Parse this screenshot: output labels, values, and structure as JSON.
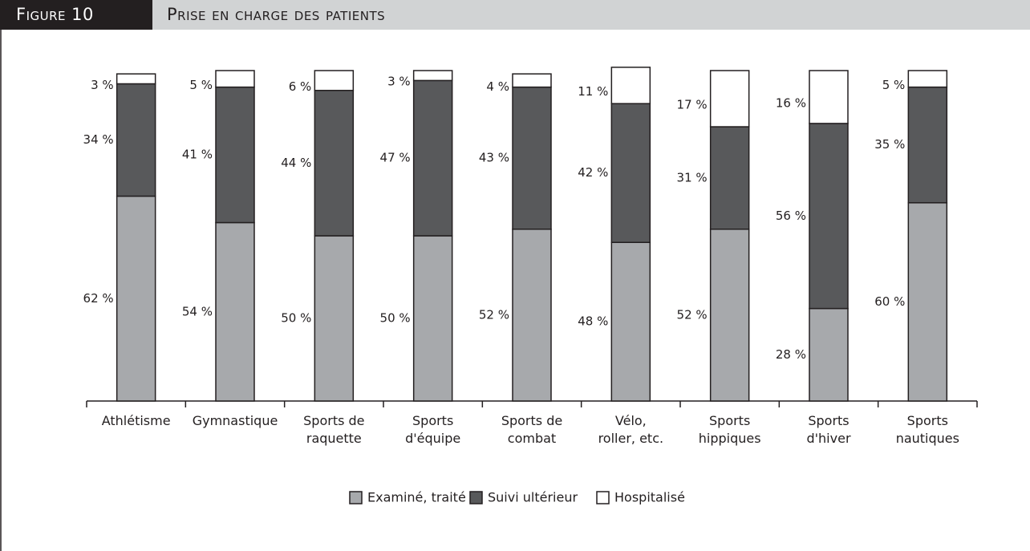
{
  "header": {
    "figure": "Figure 10",
    "title": "Prise en charge des patients"
  },
  "chart_data": {
    "type": "stacked_bar",
    "categories": [
      "Athlétisme",
      "Gymnastique",
      "Sports de\nraquette",
      "Sports\nd'équipe",
      "Sports de\ncombat",
      "Vélo,\nroller, etc.",
      "Sports\nhippiques",
      "Sports\nd'hiver",
      "Sports\nnautiques"
    ],
    "series": [
      {
        "name": "Examiné, traité",
        "color": "#a7a9ac",
        "values": [
          62,
          54,
          50,
          50,
          52,
          48,
          52,
          28,
          60
        ],
        "value_labels": [
          "62 %",
          "54 %",
          "50 %",
          "50 %",
          "52 %",
          "48 %",
          "52 %",
          "28 %",
          "60 %"
        ]
      },
      {
        "name": "Suivi ultérieur",
        "color": "#58595b",
        "values": [
          34,
          41,
          44,
          47,
          43,
          42,
          31,
          56,
          35
        ],
        "value_labels": [
          "34 %",
          "41 %",
          "44 %",
          "47 %",
          "43 %",
          "42 %",
          "31 %",
          "56 %",
          "35 %"
        ]
      },
      {
        "name": "Hospitalisé",
        "color": "#ffffff",
        "values": [
          3,
          5,
          6,
          3,
          4,
          11,
          17,
          16,
          5
        ],
        "value_labels": [
          "3 %",
          "5 %",
          "6 %",
          "3 %",
          "4 %",
          "11 %",
          "17 %",
          "16 %",
          "5 %"
        ]
      }
    ],
    "ylim": [
      0,
      100
    ],
    "legend": "bottom"
  }
}
